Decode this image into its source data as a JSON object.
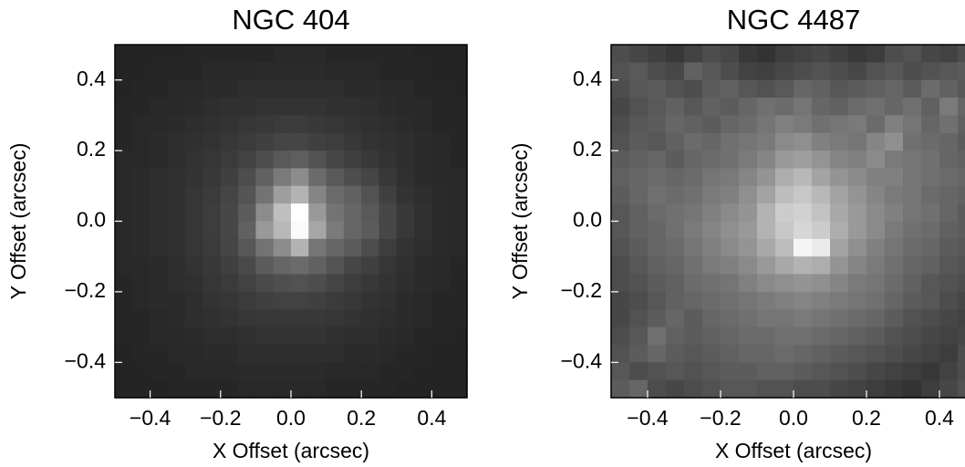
{
  "chart_data": [
    {
      "type": "heatmap",
      "title": "NGC 404",
      "xlabel": "X Offset (arcsec)",
      "ylabel": "Y Offset (arcsec)",
      "cmap": "gray",
      "xlim": [
        -0.5,
        0.5
      ],
      "ylim": [
        -0.5,
        0.5
      ],
      "xticks": [
        {
          "value": -0.4,
          "label": "−0.4"
        },
        {
          "value": -0.2,
          "label": "−0.2"
        },
        {
          "value": 0,
          "label": "0.0"
        },
        0.2,
        0.4
      ],
      "yticks": [
        {
          "value": -0.4,
          "label": "−0.4"
        },
        {
          "value": -0.2,
          "label": "−0.2"
        },
        {
          "value": 0,
          "label": "0.0"
        },
        0.2,
        0.4
      ],
      "z": [
        [
          14,
          14,
          14,
          14,
          15,
          15,
          15,
          15,
          15,
          16,
          16,
          16,
          15,
          15,
          15,
          15,
          15,
          14,
          14,
          14
        ],
        [
          14,
          14,
          15,
          15,
          15,
          16,
          16,
          16,
          17,
          17,
          17,
          17,
          16,
          16,
          16,
          15,
          15,
          15,
          14,
          14
        ],
        [
          14,
          15,
          15,
          16,
          16,
          17,
          17,
          18,
          18,
          18,
          18,
          18,
          18,
          17,
          17,
          16,
          16,
          15,
          15,
          14
        ],
        [
          15,
          15,
          16,
          16,
          17,
          18,
          19,
          19,
          20,
          20,
          20,
          20,
          19,
          19,
          18,
          17,
          16,
          16,
          15,
          15
        ],
        [
          15,
          16,
          16,
          17,
          18,
          19,
          20,
          21,
          22,
          23,
          23,
          22,
          21,
          20,
          19,
          18,
          17,
          16,
          15,
          15
        ],
        [
          15,
          16,
          17,
          18,
          19,
          20,
          22,
          23,
          25,
          27,
          27,
          25,
          24,
          22,
          20,
          19,
          18,
          17,
          16,
          15
        ],
        [
          16,
          16,
          17,
          18,
          20,
          21,
          23,
          26,
          30,
          35,
          37,
          32,
          28,
          25,
          22,
          20,
          18,
          17,
          16,
          15
        ],
        [
          16,
          17,
          18,
          19,
          20,
          22,
          25,
          30,
          38,
          48,
          55,
          42,
          35,
          30,
          27,
          22,
          19,
          17,
          16,
          16
        ],
        [
          16,
          17,
          18,
          19,
          21,
          23,
          27,
          33,
          45,
          62,
          70,
          52,
          42,
          38,
          32,
          25,
          20,
          18,
          17,
          16
        ],
        [
          16,
          17,
          18,
          19,
          21,
          24,
          28,
          36,
          55,
          75,
          100,
          60,
          45,
          40,
          35,
          28,
          22,
          19,
          17,
          16
        ],
        [
          16,
          17,
          18,
          19,
          21,
          24,
          28,
          38,
          60,
          72,
          98,
          65,
          48,
          40,
          36,
          28,
          22,
          19,
          17,
          16
        ],
        [
          16,
          17,
          18,
          19,
          21,
          23,
          27,
          34,
          45,
          55,
          70,
          46,
          40,
          36,
          30,
          24,
          20,
          18,
          17,
          16
        ],
        [
          16,
          16,
          17,
          18,
          20,
          22,
          25,
          29,
          36,
          40,
          42,
          38,
          33,
          28,
          25,
          21,
          19,
          17,
          16,
          15
        ],
        [
          15,
          16,
          17,
          18,
          19,
          21,
          23,
          26,
          29,
          31,
          32,
          30,
          27,
          24,
          22,
          20,
          18,
          17,
          16,
          15
        ],
        [
          15,
          16,
          17,
          17,
          18,
          20,
          21,
          23,
          25,
          26,
          26,
          25,
          23,
          22,
          20,
          19,
          17,
          16,
          15,
          15
        ],
        [
          15,
          15,
          16,
          17,
          18,
          19,
          20,
          21,
          22,
          22,
          22,
          22,
          21,
          20,
          19,
          18,
          17,
          16,
          15,
          15
        ],
        [
          15,
          15,
          16,
          16,
          17,
          18,
          18,
          19,
          20,
          20,
          20,
          20,
          19,
          18,
          18,
          17,
          16,
          15,
          15,
          14
        ],
        [
          14,
          15,
          15,
          16,
          16,
          17,
          17,
          18,
          18,
          18,
          18,
          18,
          18,
          17,
          17,
          16,
          15,
          15,
          14,
          14
        ],
        [
          14,
          14,
          15,
          15,
          16,
          16,
          16,
          17,
          17,
          17,
          17,
          17,
          16,
          16,
          16,
          15,
          15,
          14,
          14,
          14
        ],
        [
          14,
          14,
          14,
          15,
          15,
          15,
          15,
          16,
          16,
          16,
          16,
          16,
          15,
          15,
          15,
          15,
          14,
          14,
          14,
          14
        ]
      ]
    },
    {
      "type": "heatmap",
      "title": "NGC 4487",
      "xlabel": "X Offset (arcsec)",
      "ylabel": "Y Offset (arcsec)",
      "cmap": "gray",
      "xlim": [
        -0.5,
        0.5
      ],
      "ylim": [
        -0.5,
        0.5
      ],
      "xticks": [
        {
          "value": -0.4,
          "label": "−0.4"
        },
        {
          "value": -0.2,
          "label": "−0.2"
        },
        {
          "value": 0,
          "label": "0.0"
        },
        0.2,
        0.4
      ],
      "yticks": [
        {
          "value": -0.4,
          "label": "−0.4"
        },
        {
          "value": -0.2,
          "label": "−0.2"
        },
        {
          "value": 0,
          "label": "0.0"
        },
        0.2,
        0.4
      ],
      "z": [
        [
          30,
          28,
          25,
          22,
          26,
          30,
          28,
          22,
          20,
          24,
          26,
          28,
          25,
          22,
          24,
          30,
          32,
          28,
          26,
          30
        ],
        [
          32,
          35,
          30,
          28,
          38,
          34,
          30,
          26,
          25,
          28,
          30,
          32,
          30,
          28,
          32,
          34,
          30,
          32,
          34,
          36
        ],
        [
          30,
          34,
          36,
          32,
          30,
          36,
          38,
          34,
          32,
          35,
          40,
          38,
          34,
          36,
          38,
          40,
          36,
          42,
          38,
          34
        ],
        [
          28,
          32,
          35,
          38,
          34,
          38,
          36,
          40,
          44,
          42,
          46,
          40,
          38,
          42,
          44,
          40,
          44,
          38,
          48,
          40
        ],
        [
          30,
          34,
          36,
          40,
          38,
          36,
          40,
          42,
          46,
          50,
          48,
          44,
          46,
          48,
          42,
          50,
          46,
          40,
          44,
          38
        ],
        [
          32,
          36,
          34,
          38,
          42,
          40,
          44,
          46,
          48,
          54,
          56,
          50,
          48,
          46,
          52,
          56,
          44,
          42,
          40,
          36
        ],
        [
          36,
          38,
          40,
          36,
          40,
          42,
          44,
          48,
          52,
          60,
          62,
          58,
          52,
          50,
          54,
          48,
          46,
          44,
          40,
          38
        ],
        [
          38,
          40,
          42,
          40,
          42,
          46,
          48,
          52,
          58,
          68,
          72,
          64,
          58,
          54,
          50,
          50,
          46,
          44,
          42,
          40
        ],
        [
          36,
          40,
          44,
          42,
          44,
          48,
          50,
          56,
          64,
          74,
          78,
          72,
          64,
          58,
          52,
          48,
          46,
          42,
          40,
          38
        ],
        [
          34,
          38,
          42,
          44,
          46,
          50,
          54,
          58,
          70,
          80,
          82,
          76,
          66,
          60,
          54,
          50,
          46,
          44,
          40,
          36
        ],
        [
          34,
          38,
          40,
          44,
          48,
          52,
          56,
          60,
          70,
          78,
          84,
          80,
          68,
          60,
          54,
          48,
          44,
          42,
          38,
          36
        ],
        [
          32,
          36,
          40,
          42,
          46,
          50,
          54,
          58,
          66,
          74,
          96,
          92,
          64,
          56,
          50,
          46,
          42,
          40,
          36,
          34
        ],
        [
          30,
          34,
          38,
          40,
          44,
          48,
          50,
          54,
          60,
          66,
          70,
          68,
          58,
          52,
          48,
          44,
          40,
          38,
          34,
          32
        ],
        [
          30,
          32,
          36,
          38,
          42,
          44,
          46,
          50,
          54,
          56,
          58,
          56,
          52,
          48,
          46,
          42,
          38,
          34,
          32,
          30
        ],
        [
          28,
          30,
          34,
          38,
          40,
          42,
          44,
          46,
          48,
          50,
          52,
          50,
          48,
          46,
          44,
          40,
          36,
          34,
          30,
          28
        ],
        [
          28,
          32,
          36,
          40,
          36,
          40,
          42,
          44,
          46,
          46,
          48,
          46,
          44,
          42,
          40,
          36,
          32,
          30,
          28,
          26
        ],
        [
          30,
          34,
          44,
          38,
          36,
          38,
          40,
          42,
          42,
          44,
          44,
          42,
          40,
          38,
          36,
          32,
          30,
          28,
          26,
          28
        ],
        [
          32,
          36,
          40,
          36,
          34,
          36,
          38,
          40,
          40,
          42,
          40,
          38,
          36,
          34,
          32,
          30,
          28,
          26,
          24,
          30
        ],
        [
          34,
          30,
          32,
          34,
          32,
          34,
          36,
          36,
          38,
          38,
          36,
          34,
          32,
          30,
          28,
          26,
          24,
          22,
          26,
          30
        ],
        [
          36,
          40,
          30,
          28,
          30,
          32,
          34,
          34,
          32,
          32,
          30,
          30,
          28,
          26,
          24,
          22,
          20,
          24,
          28,
          32
        ]
      ]
    }
  ]
}
